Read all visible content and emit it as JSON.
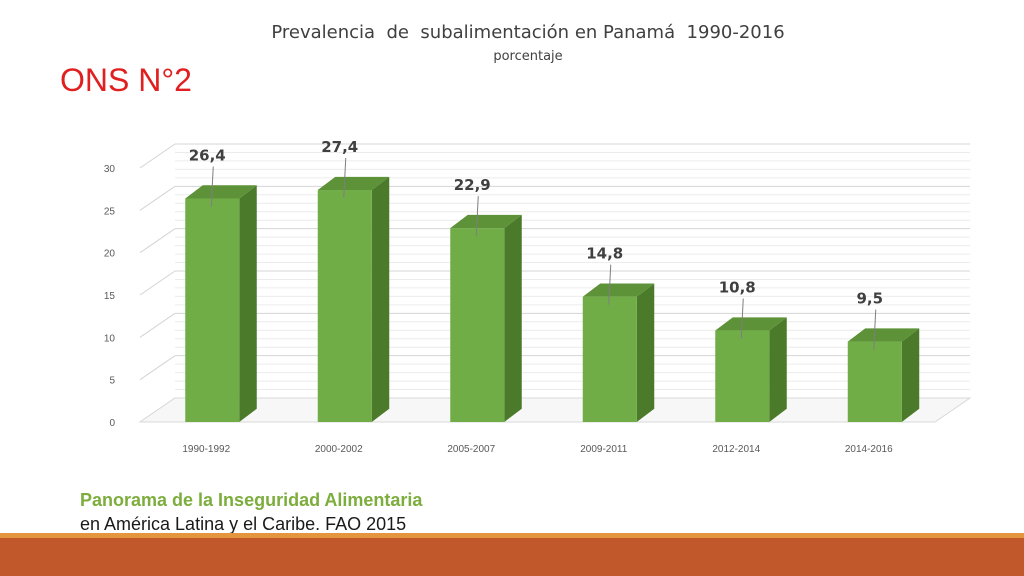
{
  "slide": {
    "heading": "ONS N°2",
    "source_line1": "Panorama de la Inseguridad Alimentaria",
    "source_line2": "en América Latina y el Caribe. FAO 2015"
  },
  "colors": {
    "bar_front": "#70ad47",
    "bar_side": "#4a7a2a",
    "bar_top": "#5d9238",
    "heading": "#e02020",
    "source_title": "#7cad3d",
    "footer_stripe": "#e3963e",
    "footer_bar": "#c0582b"
  },
  "chart_data": {
    "type": "bar",
    "title": "Prevalencia  de  subalimentación en Panamá  1990-2016",
    "subtitle": "porcentaje",
    "categories": [
      "1990-1992",
      "2000-2002",
      "2005-2007",
      "2009-2011",
      "2012-2014",
      "2014-2016"
    ],
    "values": [
      26.4,
      27.4,
      22.9,
      14.8,
      10.8,
      9.5
    ],
    "data_labels": [
      "26,4",
      "27,4",
      "22,9",
      "14,8",
      "10,8",
      "9,5"
    ],
    "ylim": [
      0,
      30
    ],
    "yticks": [
      "0",
      "5",
      "10",
      "15",
      "20",
      "25",
      "30"
    ],
    "style": "3d-column",
    "grid": true
  }
}
